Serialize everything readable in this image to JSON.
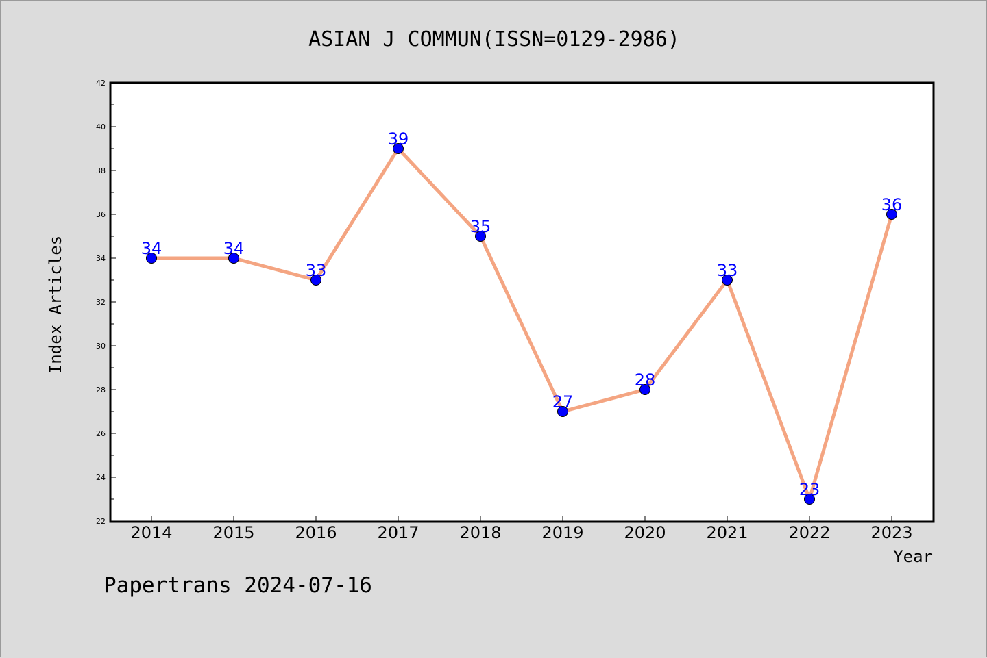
{
  "chart_data": {
    "type": "line",
    "title": "ASIAN J COMMUN(ISSN=0129-2986)",
    "xlabel": "Year",
    "ylabel": "Index Articles",
    "categories": [
      "2014",
      "2015",
      "2016",
      "2017",
      "2018",
      "2019",
      "2020",
      "2021",
      "2022",
      "2023"
    ],
    "series": [
      {
        "values": [
          34,
          34,
          33,
          39,
          35,
          27,
          28,
          33,
          23,
          36
        ]
      }
    ],
    "ylim": [
      22,
      42
    ],
    "yticks": [
      22,
      24,
      26,
      28,
      30,
      32,
      34,
      36,
      38,
      40,
      42
    ],
    "data_labels": true,
    "grid": false,
    "legend": "none",
    "line_color": "#f4a582",
    "marker_color": "#0000ff",
    "label_color": "#0000ff"
  },
  "footer": "Papertrans 2024-07-16"
}
